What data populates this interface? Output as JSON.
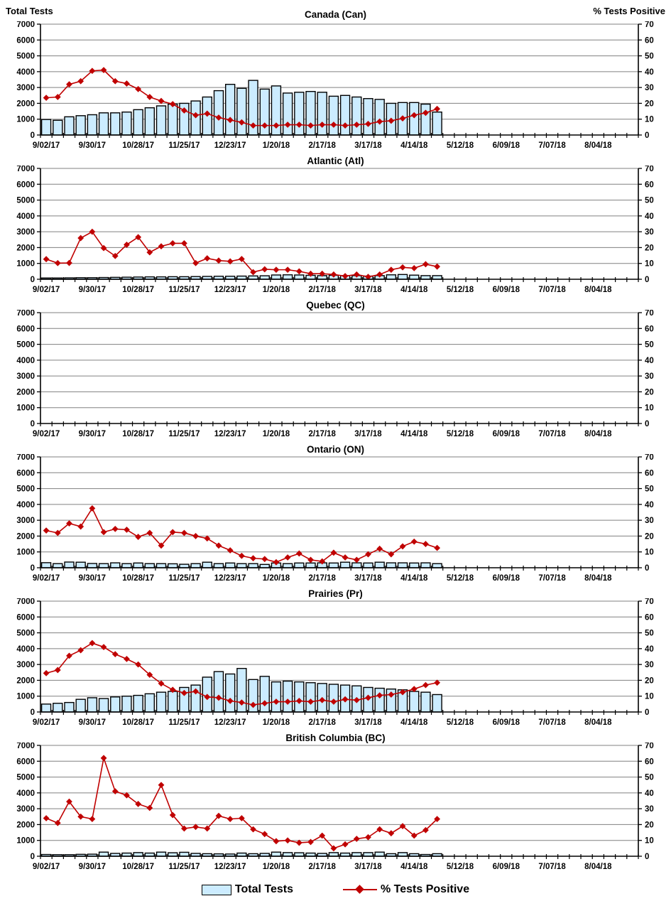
{
  "colors": {
    "bar_fill": "#CCECFF",
    "bar_stroke": "#000000",
    "line": "#C00000",
    "grid": "#808080",
    "axis": "#000000"
  },
  "axes": {
    "x_tick_labels": [
      "9/02/17",
      "9/30/17",
      "10/28/17",
      "11/25/17",
      "12/23/17",
      "1/20/18",
      "2/17/18",
      "3/17/18",
      "4/14/18",
      "5/12/18",
      "6/09/18",
      "7/07/18",
      "8/04/18"
    ],
    "x_label_interval_weeks": 4,
    "x_total_weeks": 52,
    "y_left": {
      "title": "Total Tests",
      "min": 0,
      "max": 7000,
      "step": 1000
    },
    "y_right": {
      "title": "% Tests Positive",
      "min": 0,
      "max": 70,
      "step": 10
    }
  },
  "legend": {
    "total_tests_label": "Total Tests",
    "pct_positive_label": "% Tests Positive"
  },
  "chart_data": [
    {
      "type": "bar+line",
      "title": "Canada (Can)",
      "series": [
        {
          "name": "Total Tests",
          "type": "bar",
          "axis": "left",
          "values": [
            980,
            930,
            1150,
            1220,
            1280,
            1400,
            1400,
            1450,
            1600,
            1720,
            1840,
            1950,
            2000,
            2150,
            2400,
            2800,
            3200,
            2950,
            3450,
            2900,
            3100,
            2650,
            2700,
            2750,
            2700,
            2450,
            2500,
            2400,
            2300,
            2250,
            2000,
            2050,
            2050,
            1950,
            1450
          ]
        },
        {
          "name": "% Tests Positive",
          "type": "line",
          "axis": "right",
          "values": [
            23.5,
            24,
            32,
            34,
            40.5,
            41,
            34,
            32.5,
            29,
            24,
            21.5,
            19.5,
            15.5,
            12.5,
            13.5,
            11,
            9.5,
            8,
            6,
            6,
            6,
            6.5,
            6.5,
            6,
            6.5,
            6.5,
            6,
            6.5,
            7,
            8.5,
            9,
            10.5,
            12.5,
            14,
            16.5
          ]
        }
      ]
    },
    {
      "type": "bar+line",
      "title": "Atlantic (Atl)",
      "series": [
        {
          "name": "Total Tests",
          "type": "bar",
          "axis": "left",
          "values": [
            80,
            80,
            90,
            100,
            100,
            110,
            120,
            130,
            140,
            150,
            150,
            160,
            160,
            170,
            180,
            190,
            190,
            200,
            210,
            220,
            270,
            280,
            270,
            250,
            230,
            250,
            230,
            230,
            200,
            230,
            280,
            300,
            260,
            230,
            230
          ]
        },
        {
          "name": "% Tests Positive",
          "type": "line",
          "axis": "right",
          "values": [
            12.7,
            10.2,
            10.3,
            26,
            30,
            19.7,
            14.7,
            21.8,
            26.6,
            17,
            20.8,
            22.7,
            22.7,
            10.2,
            13.2,
            11.8,
            11.3,
            12.8,
            4.5,
            6.3,
            6,
            6,
            5,
            3.5,
            3.5,
            3,
            2,
            3,
            1.5,
            3,
            6,
            7.5,
            7,
            9.5,
            8
          ]
        }
      ]
    },
    {
      "type": "bar+line",
      "title": "Quebec (QC)",
      "series": [
        {
          "name": "Total Tests",
          "type": "bar",
          "axis": "left",
          "values": []
        },
        {
          "name": "% Tests Positive",
          "type": "line",
          "axis": "right",
          "values": []
        }
      ]
    },
    {
      "type": "bar+line",
      "title": "Ontario (ON)",
      "series": [
        {
          "name": "Total Tests",
          "type": "bar",
          "axis": "left",
          "values": [
            320,
            260,
            360,
            350,
            270,
            260,
            310,
            260,
            300,
            260,
            260,
            250,
            220,
            260,
            350,
            260,
            300,
            260,
            260,
            210,
            300,
            260,
            300,
            300,
            310,
            300,
            350,
            310,
            300,
            350,
            310,
            310,
            300,
            310,
            260
          ]
        },
        {
          "name": "% Tests Positive",
          "type": "line",
          "axis": "right",
          "values": [
            23.5,
            22,
            28,
            26,
            37.5,
            22.5,
            24.5,
            24,
            19.5,
            22,
            14,
            22.5,
            22,
            20,
            18.5,
            14,
            11,
            7.5,
            6,
            5.5,
            3.5,
            6.5,
            9,
            5,
            4,
            9.5,
            6.5,
            5,
            8.5,
            12,
            8.5,
            13.5,
            16.5,
            15,
            12.5
          ]
        }
      ]
    },
    {
      "type": "bar+line",
      "title": "Prairies (Pr)",
      "series": [
        {
          "name": "Total Tests",
          "type": "bar",
          "axis": "left",
          "values": [
            500,
            550,
            600,
            800,
            900,
            850,
            950,
            1000,
            1050,
            1150,
            1250,
            1300,
            1550,
            1700,
            2200,
            2550,
            2400,
            2750,
            2050,
            2250,
            1900,
            1950,
            1900,
            1850,
            1800,
            1750,
            1700,
            1650,
            1550,
            1500,
            1450,
            1400,
            1300,
            1250,
            1100
          ]
        },
        {
          "name": "% Tests Positive",
          "type": "line",
          "axis": "right",
          "values": [
            24.5,
            26.5,
            35.5,
            39,
            43.5,
            41,
            36.5,
            33.5,
            30,
            23.5,
            18,
            14,
            12,
            13,
            9.5,
            9,
            7,
            6,
            4.5,
            5.5,
            6.5,
            6.5,
            7,
            6.5,
            7.5,
            6.5,
            8,
            7.5,
            9,
            10.5,
            11,
            12.5,
            14.5,
            17,
            18.5
          ]
        }
      ]
    },
    {
      "type": "bar+line",
      "title": "British Columbia (BC)",
      "series": [
        {
          "name": "Total Tests",
          "type": "bar",
          "axis": "left",
          "values": [
            110,
            100,
            100,
            120,
            130,
            260,
            180,
            200,
            230,
            200,
            260,
            220,
            250,
            180,
            160,
            150,
            140,
            200,
            160,
            180,
            260,
            230,
            220,
            200,
            180,
            230,
            200,
            230,
            230,
            260,
            160,
            230,
            160,
            110,
            160
          ]
        },
        {
          "name": "% Tests Positive",
          "type": "line",
          "axis": "right",
          "values": [
            24,
            21,
            34.5,
            25,
            23.5,
            62,
            41,
            38.5,
            33,
            30.5,
            45,
            26,
            17.5,
            18.5,
            17.5,
            25.5,
            23.5,
            24,
            17,
            14,
            9.5,
            10,
            8.5,
            9,
            13,
            5,
            7.5,
            11,
            12,
            17,
            14.5,
            19,
            13,
            16.5,
            23.5
          ]
        }
      ]
    }
  ]
}
